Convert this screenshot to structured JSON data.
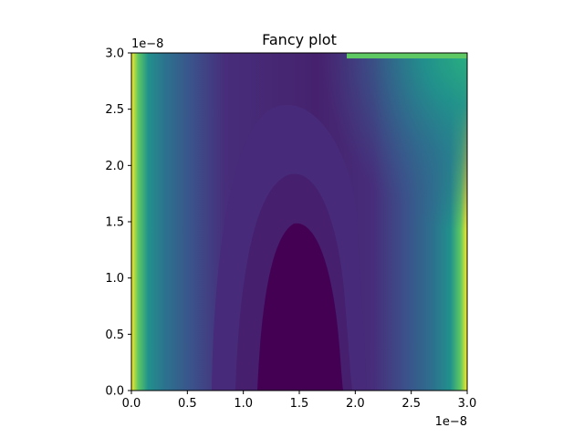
{
  "chart_data": {
    "type": "heatmap",
    "title": "Fancy plot",
    "xlabel": "",
    "ylabel": "",
    "xlim": [
      0.0,
      3e-08
    ],
    "ylim": [
      0.0,
      3e-08
    ],
    "x_ticks": [
      "0.0",
      "0.5",
      "1.0",
      "1.5",
      "2.0",
      "2.5",
      "3.0"
    ],
    "y_ticks": [
      "0.0",
      "0.5",
      "1.0",
      "1.5",
      "2.0",
      "2.5",
      "3.0"
    ],
    "x_offset_label": "1e−8",
    "y_offset_label": "1e−8",
    "grid": false,
    "colormap": [
      "#440154",
      "#472d7b",
      "#3b528b",
      "#2c728e",
      "#21918c",
      "#28ae80",
      "#5ec962",
      "#addc30",
      "#fde725"
    ]
  }
}
